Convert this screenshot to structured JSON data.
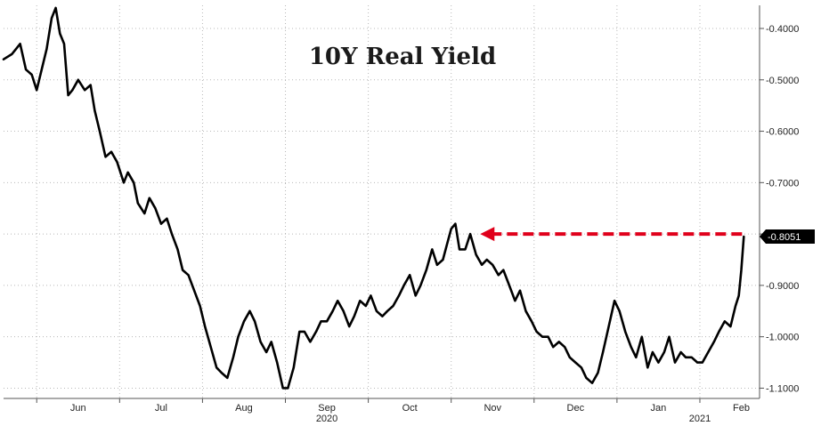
{
  "chart_data": {
    "type": "line",
    "title": "10Y Real Yield",
    "xlabel": "",
    "ylabel": "",
    "y_axis_position": "right",
    "ylim": [
      -1.12,
      -0.355
    ],
    "y_ticks": [
      -0.4,
      -0.5,
      -0.6,
      -0.7,
      -0.8,
      -0.9,
      -1.0,
      -1.1
    ],
    "y_tick_labels": [
      "-0.4000",
      "-0.5000",
      "-0.6000",
      "-0.7000",
      "-0.8000",
      "-0.9000",
      "-1.0000",
      "-1.1000"
    ],
    "grid": true,
    "x_months": [
      "Jun",
      "Jul",
      "Aug",
      "Sep",
      "Oct",
      "Nov",
      "Dec",
      "Jan",
      "Feb"
    ],
    "x_month_index": [
      0.5,
      1.5,
      2.5,
      3.5,
      4.5,
      5.5,
      6.5,
      7.5,
      8.5
    ],
    "x_years": [
      {
        "label": "2020",
        "index": 3.5
      },
      {
        "label": "2021",
        "index": 8.0
      }
    ],
    "xlim": [
      -0.4,
      8.72
    ],
    "last_value": -0.8051,
    "last_value_label": "-0.8051",
    "annotation": {
      "type": "arrow",
      "color": "#e0001b",
      "from": {
        "x": 8.53,
        "y": -0.8
      },
      "to": {
        "x": 5.35,
        "y": -0.8
      }
    },
    "series": [
      {
        "color": "#000000",
        "points": [
          [
            -0.4,
            -0.46
          ],
          [
            -0.3,
            -0.45
          ],
          [
            -0.2,
            -0.43
          ],
          [
            -0.13,
            -0.48
          ],
          [
            -0.06,
            -0.49
          ],
          [
            0.0,
            -0.52
          ],
          [
            0.06,
            -0.48
          ],
          [
            0.12,
            -0.44
          ],
          [
            0.18,
            -0.38
          ],
          [
            0.23,
            -0.36
          ],
          [
            0.28,
            -0.41
          ],
          [
            0.33,
            -0.43
          ],
          [
            0.38,
            -0.53
          ],
          [
            0.43,
            -0.52
          ],
          [
            0.5,
            -0.5
          ],
          [
            0.58,
            -0.52
          ],
          [
            0.65,
            -0.51
          ],
          [
            0.7,
            -0.56
          ],
          [
            0.76,
            -0.6
          ],
          [
            0.83,
            -0.65
          ],
          [
            0.9,
            -0.64
          ],
          [
            0.97,
            -0.66
          ],
          [
            1.05,
            -0.7
          ],
          [
            1.1,
            -0.68
          ],
          [
            1.17,
            -0.7
          ],
          [
            1.22,
            -0.74
          ],
          [
            1.3,
            -0.76
          ],
          [
            1.36,
            -0.73
          ],
          [
            1.43,
            -0.75
          ],
          [
            1.5,
            -0.78
          ],
          [
            1.57,
            -0.77
          ],
          [
            1.63,
            -0.8
          ],
          [
            1.7,
            -0.83
          ],
          [
            1.76,
            -0.87
          ],
          [
            1.83,
            -0.88
          ],
          [
            1.9,
            -0.91
          ],
          [
            1.97,
            -0.94
          ],
          [
            2.03,
            -0.98
          ],
          [
            2.1,
            -1.02
          ],
          [
            2.17,
            -1.06
          ],
          [
            2.23,
            -1.07
          ],
          [
            2.3,
            -1.08
          ],
          [
            2.37,
            -1.04
          ],
          [
            2.43,
            -1.0
          ],
          [
            2.5,
            -0.97
          ],
          [
            2.57,
            -0.95
          ],
          [
            2.63,
            -0.97
          ],
          [
            2.7,
            -1.01
          ],
          [
            2.77,
            -1.03
          ],
          [
            2.83,
            -1.01
          ],
          [
            2.9,
            -1.05
          ],
          [
            2.97,
            -1.1
          ],
          [
            3.03,
            -1.1
          ],
          [
            3.1,
            -1.06
          ],
          [
            3.17,
            -0.99
          ],
          [
            3.23,
            -0.99
          ],
          [
            3.3,
            -1.01
          ],
          [
            3.37,
            -0.99
          ],
          [
            3.43,
            -0.97
          ],
          [
            3.5,
            -0.97
          ],
          [
            3.57,
            -0.95
          ],
          [
            3.63,
            -0.93
          ],
          [
            3.7,
            -0.95
          ],
          [
            3.77,
            -0.98
          ],
          [
            3.83,
            -0.96
          ],
          [
            3.9,
            -0.93
          ],
          [
            3.97,
            -0.94
          ],
          [
            4.03,
            -0.92
          ],
          [
            4.1,
            -0.95
          ],
          [
            4.17,
            -0.96
          ],
          [
            4.23,
            -0.95
          ],
          [
            4.3,
            -0.94
          ],
          [
            4.37,
            -0.92
          ],
          [
            4.43,
            -0.9
          ],
          [
            4.5,
            -0.88
          ],
          [
            4.57,
            -0.92
          ],
          [
            4.63,
            -0.9
          ],
          [
            4.7,
            -0.87
          ],
          [
            4.77,
            -0.83
          ],
          [
            4.83,
            -0.86
          ],
          [
            4.9,
            -0.85
          ],
          [
            4.95,
            -0.82
          ],
          [
            5.0,
            -0.79
          ],
          [
            5.05,
            -0.78
          ],
          [
            5.1,
            -0.83
          ],
          [
            5.17,
            -0.83
          ],
          [
            5.23,
            -0.8
          ],
          [
            5.3,
            -0.84
          ],
          [
            5.37,
            -0.86
          ],
          [
            5.43,
            -0.85
          ],
          [
            5.5,
            -0.86
          ],
          [
            5.57,
            -0.88
          ],
          [
            5.63,
            -0.87
          ],
          [
            5.7,
            -0.9
          ],
          [
            5.77,
            -0.93
          ],
          [
            5.83,
            -0.91
          ],
          [
            5.9,
            -0.95
          ],
          [
            5.97,
            -0.97
          ],
          [
            6.03,
            -0.99
          ],
          [
            6.1,
            -1.0
          ],
          [
            6.17,
            -1.0
          ],
          [
            6.23,
            -1.02
          ],
          [
            6.3,
            -1.01
          ],
          [
            6.37,
            -1.02
          ],
          [
            6.43,
            -1.04
          ],
          [
            6.5,
            -1.05
          ],
          [
            6.57,
            -1.06
          ],
          [
            6.63,
            -1.08
          ],
          [
            6.7,
            -1.09
          ],
          [
            6.77,
            -1.07
          ],
          [
            6.83,
            -1.03
          ],
          [
            6.9,
            -0.98
          ],
          [
            6.97,
            -0.93
          ],
          [
            7.03,
            -0.95
          ],
          [
            7.1,
            -0.99
          ],
          [
            7.17,
            -1.02
          ],
          [
            7.23,
            -1.04
          ],
          [
            7.3,
            -1.0
          ],
          [
            7.37,
            -1.06
          ],
          [
            7.43,
            -1.03
          ],
          [
            7.5,
            -1.05
          ],
          [
            7.57,
            -1.03
          ],
          [
            7.63,
            -1.0
          ],
          [
            7.7,
            -1.05
          ],
          [
            7.77,
            -1.03
          ],
          [
            7.83,
            -1.04
          ],
          [
            7.9,
            -1.04
          ],
          [
            7.97,
            -1.05
          ],
          [
            8.03,
            -1.05
          ],
          [
            8.1,
            -1.03
          ],
          [
            8.17,
            -1.01
          ],
          [
            8.23,
            -0.99
          ],
          [
            8.3,
            -0.97
          ],
          [
            8.37,
            -0.98
          ],
          [
            8.43,
            -0.94
          ],
          [
            8.47,
            -0.92
          ],
          [
            8.5,
            -0.87
          ],
          [
            8.53,
            -0.8051
          ]
        ]
      }
    ]
  }
}
